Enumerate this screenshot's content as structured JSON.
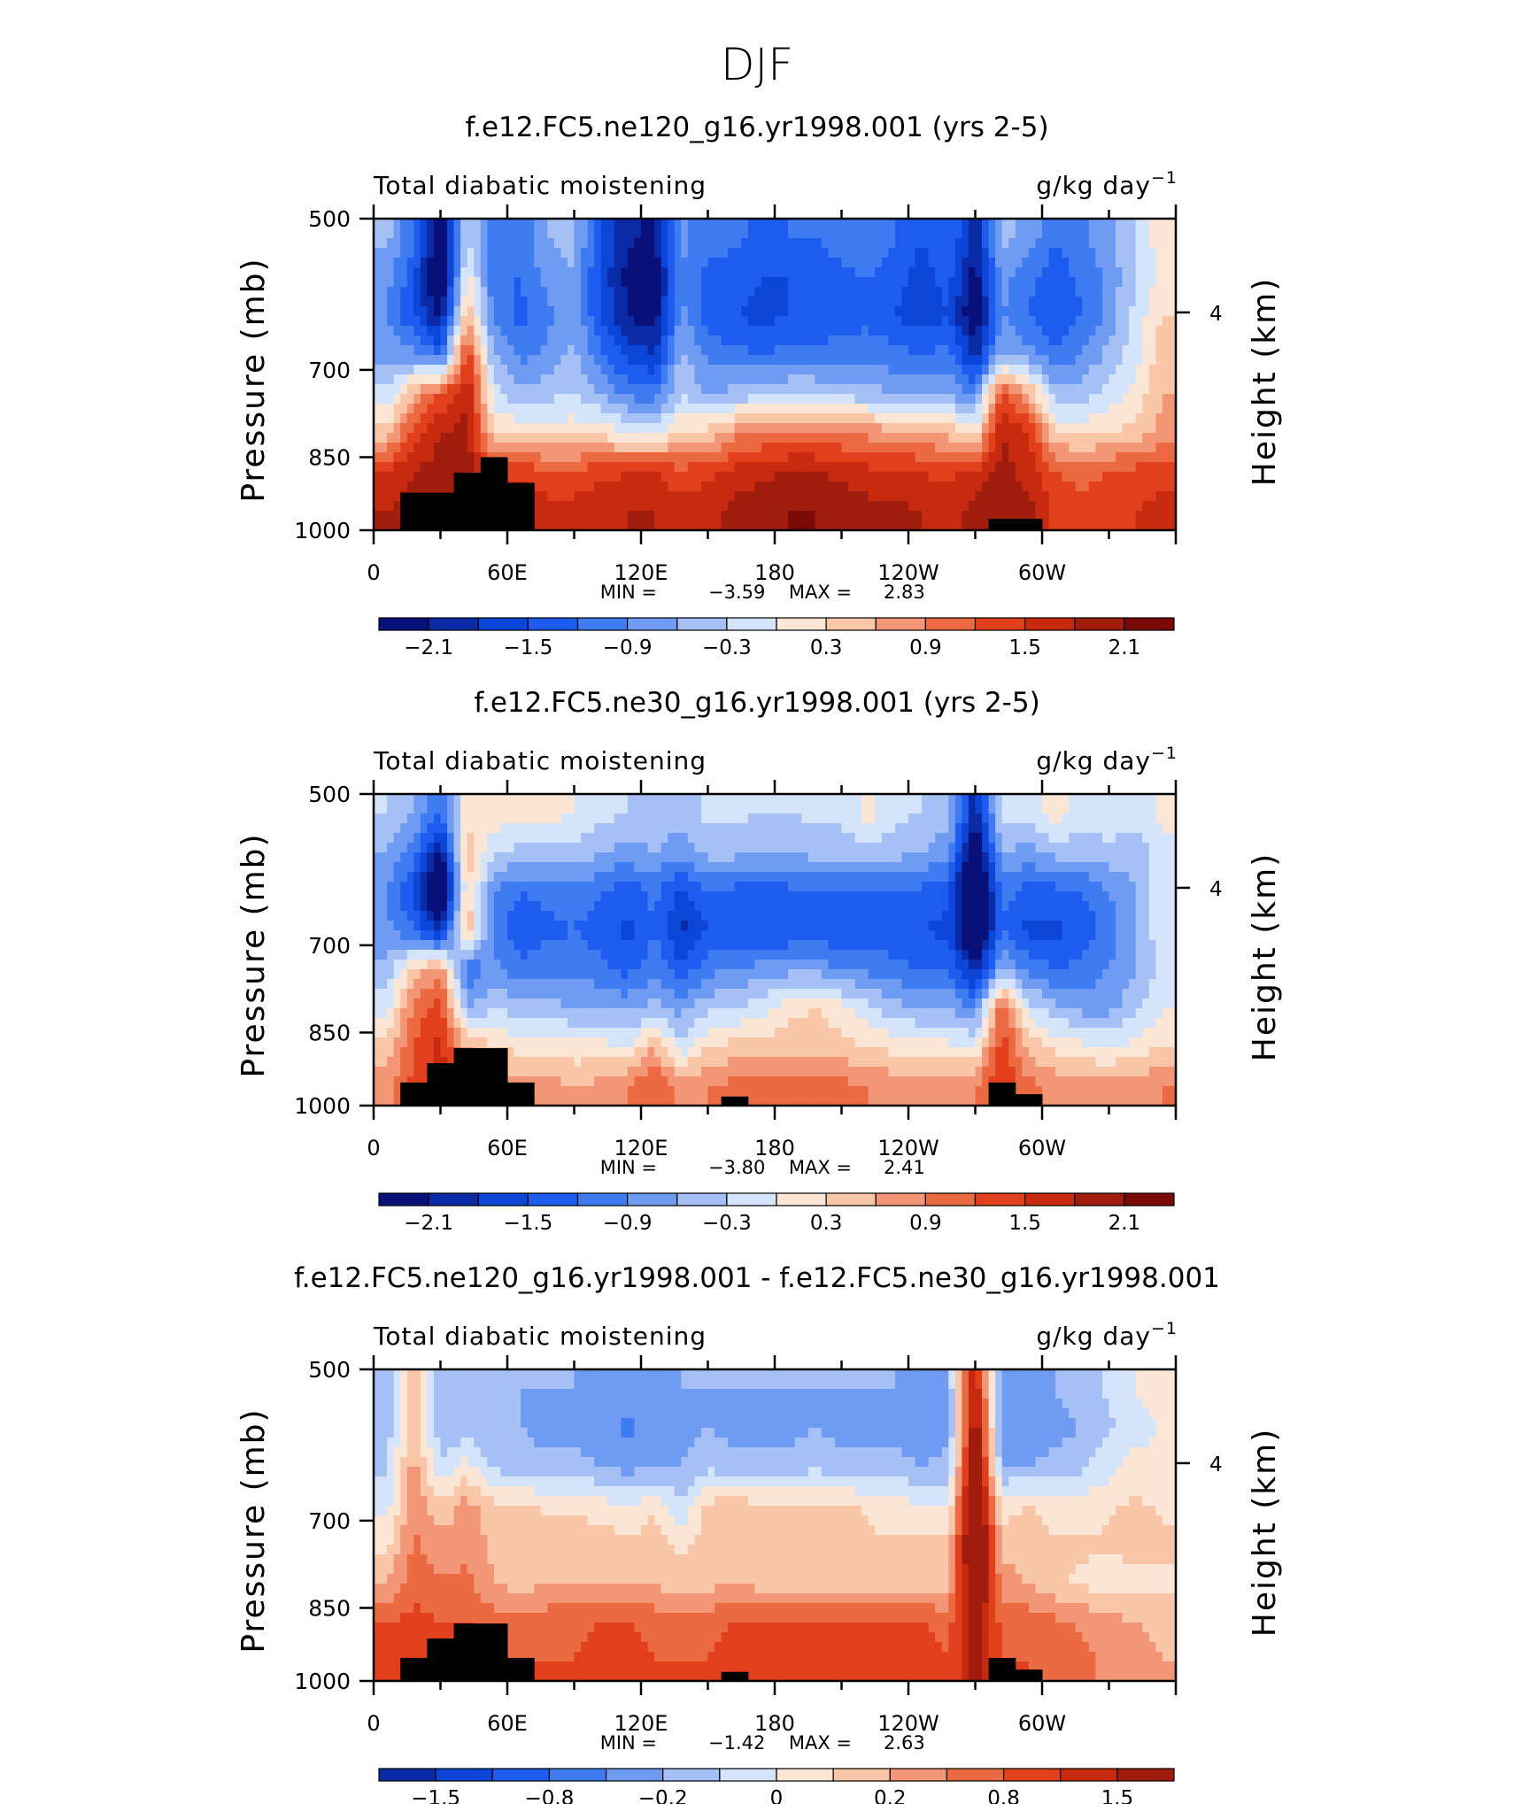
{
  "page_title": "DJF",
  "units_prefix": "g/kg day",
  "units_exp": "−1",
  "colors": {
    "std": [
      "#08107a",
      "#0a2aa6",
      "#0b46d8",
      "#1e5cf0",
      "#3f7cf2",
      "#6f9cf2",
      "#a4c0f4",
      "#d4e4fa",
      "#fbe6d6",
      "#f9c6a8",
      "#f29676",
      "#ec6a42",
      "#e2401c",
      "#c82a10",
      "#a01c0c",
      "#7a0a06"
    ],
    "land": "#000000",
    "axis": "#000000"
  },
  "chart_data": [
    {
      "type": "heatmap",
      "title": "f.e12.FC5.ne120_g16.yr1998.001 (yrs 2-5)",
      "left_label": "Total diabatic moistening",
      "ylabel": "Pressure (mb)",
      "ylabel_right": "Height (km)",
      "yticks": [
        "500",
        "700",
        "850",
        "1000"
      ],
      "ytick_values": [
        500,
        700,
        850,
        1000
      ],
      "right_tick": "4",
      "xticks": [
        "0",
        "60E",
        "120E",
        "180",
        "120W",
        "60W"
      ],
      "xtick_values": [
        0,
        60,
        120,
        180,
        240,
        300
      ],
      "xlim": [
        0,
        360
      ],
      "ylim": [
        500,
        1000
      ],
      "min_label": "MIN =",
      "min_value": "−3.59",
      "max_label": "MAX =",
      "max_value": "2.83",
      "colorbar_labels": [
        "−2.1",
        "−1.5",
        "−0.9",
        "−0.3",
        "0.3",
        "0.9",
        "1.5",
        "2.1"
      ],
      "field": [
        [
          -0.5,
          -1.2,
          -2.4,
          -0.3,
          -1.0,
          -1.1,
          -0.6,
          -0.5,
          -1.5,
          -2.0,
          -2.2,
          -0.8,
          -1.1,
          -1.1,
          -1.3,
          -1.2,
          -1.2,
          -1.0,
          -0.9,
          -1.2,
          -1.5,
          -1.2,
          -2.0,
          -0.5,
          -0.7,
          -1.2,
          -1.0,
          -0.7,
          -0.3,
          0.2
        ],
        [
          -0.8,
          -1.4,
          -2.8,
          0.2,
          -1.2,
          -1.2,
          -0.8,
          -0.6,
          -1.6,
          -2.2,
          -2.4,
          -0.9,
          -1.3,
          -1.4,
          -1.5,
          -1.5,
          -1.4,
          -1.3,
          -1.2,
          -1.4,
          -1.6,
          -1.4,
          -2.3,
          -0.8,
          -1.1,
          -1.4,
          -1.1,
          -0.8,
          -0.3,
          0.1
        ],
        [
          -0.9,
          -1.5,
          -2.2,
          0.6,
          -1.0,
          -1.3,
          -1.0,
          -0.7,
          -1.5,
          -2.1,
          -2.3,
          -0.8,
          -1.4,
          -1.5,
          -1.6,
          -1.5,
          -1.5,
          -1.4,
          -1.3,
          -1.5,
          -1.7,
          -1.5,
          -2.5,
          -0.9,
          -1.2,
          -1.5,
          -1.2,
          -0.8,
          -0.2,
          0.3
        ],
        [
          -0.7,
          -0.8,
          -1.2,
          1.4,
          -0.6,
          -1.0,
          -0.8,
          -0.5,
          -1.1,
          -1.6,
          -1.8,
          -0.5,
          -1.0,
          -1.1,
          -1.2,
          -1.1,
          -1.1,
          -1.0,
          -1.0,
          -1.1,
          -1.2,
          -1.1,
          -1.9,
          -0.6,
          -0.8,
          -1.1,
          -0.9,
          -0.5,
          -0.1,
          0.5
        ],
        [
          -0.2,
          0.6,
          1.2,
          1.8,
          -0.2,
          -0.5,
          -0.4,
          -0.3,
          -0.6,
          -1.0,
          -1.1,
          -0.3,
          -0.6,
          -0.5,
          -0.4,
          -0.3,
          -0.3,
          -0.4,
          -0.5,
          -0.6,
          -0.7,
          -0.6,
          -1.0,
          1.4,
          0.6,
          -0.5,
          -0.4,
          -0.2,
          0.1,
          0.6
        ],
        [
          0.4,
          1.4,
          1.8,
          1.9,
          0.3,
          0.2,
          0.2,
          0.2,
          0.2,
          0.0,
          -0.1,
          0.3,
          0.4,
          0.8,
          0.9,
          1.0,
          1.0,
          0.9,
          0.8,
          0.7,
          0.6,
          0.5,
          0.2,
          1.8,
          1.5,
          0.3,
          0.2,
          0.3,
          0.4,
          0.7
        ],
        [
          1.5,
          1.8,
          1.9,
          2.0,
          1.4,
          1.4,
          1.3,
          1.3,
          1.4,
          1.5,
          1.5,
          1.3,
          1.4,
          1.6,
          1.7,
          1.8,
          1.8,
          1.7,
          1.6,
          1.6,
          1.5,
          1.4,
          1.6,
          1.9,
          1.7,
          1.2,
          1.1,
          1.2,
          1.3,
          1.4
        ],
        [
          1.8,
          2.0,
          2.0,
          2.1,
          1.7,
          1.7,
          1.6,
          1.6,
          1.7,
          1.8,
          1.8,
          1.6,
          1.7,
          1.9,
          2.0,
          2.1,
          2.1,
          2.0,
          1.9,
          1.9,
          1.8,
          1.7,
          1.9,
          2.1,
          1.9,
          1.4,
          1.3,
          1.4,
          1.5,
          1.6
        ]
      ],
      "land_profile": [
        0,
        920,
        920,
        880,
        850,
        900,
        1000,
        1000,
        1000,
        1000,
        1000,
        1000,
        1000,
        1000,
        1000,
        1000,
        1000,
        1000,
        1000,
        1000,
        1000,
        1000,
        1000,
        975,
        975,
        1000,
        1000,
        1000,
        1000,
        1000
      ]
    },
    {
      "type": "heatmap",
      "title": "f.e12.FC5.ne30_g16.yr1998.001 (yrs 2-5)",
      "left_label": "Total diabatic moistening",
      "ylabel": "Pressure (mb)",
      "ylabel_right": "Height (km)",
      "yticks": [
        "500",
        "700",
        "850",
        "1000"
      ],
      "ytick_values": [
        500,
        700,
        850,
        1000
      ],
      "right_tick": "4",
      "xticks": [
        "0",
        "60E",
        "120E",
        "180",
        "120W",
        "60W"
      ],
      "xtick_values": [
        0,
        60,
        120,
        180,
        240,
        300
      ],
      "xlim": [
        0,
        360
      ],
      "ylim": [
        500,
        1000
      ],
      "min_label": "MIN =",
      "min_value": "−3.80",
      "max_label": "MAX =",
      "max_value": "2.41",
      "colorbar_labels": [
        "−2.1",
        "−1.5",
        "−0.9",
        "−0.3",
        "0.3",
        "0.9",
        "1.5",
        "2.1"
      ],
      "field": [
        [
          -0.3,
          -0.6,
          -1.2,
          0.2,
          0.2,
          0.1,
          0.1,
          0.0,
          -0.2,
          -0.3,
          -0.4,
          -0.5,
          -0.2,
          -0.2,
          -0.3,
          -0.3,
          -0.2,
          -0.2,
          0.1,
          -0.2,
          -0.3,
          -0.5,
          -2.0,
          -0.2,
          -0.2,
          0.2,
          -0.2,
          -0.1,
          -0.2,
          0.1
        ],
        [
          -0.6,
          -1.0,
          -2.2,
          0.5,
          -0.3,
          -0.4,
          -0.4,
          -0.4,
          -0.6,
          -0.7,
          -0.6,
          -0.8,
          -0.5,
          -0.5,
          -0.6,
          -0.6,
          -0.5,
          -0.5,
          -0.4,
          -0.5,
          -0.6,
          -0.8,
          -2.6,
          -0.6,
          -0.7,
          -0.5,
          -0.5,
          -0.4,
          -0.5,
          -0.1
        ],
        [
          -0.9,
          -1.6,
          -3.0,
          0.4,
          -0.9,
          -1.2,
          -1.1,
          -1.0,
          -1.2,
          -1.4,
          -1.1,
          -1.6,
          -1.2,
          -1.3,
          -1.3,
          -1.3,
          -1.2,
          -1.3,
          -1.2,
          -1.2,
          -1.3,
          -1.4,
          -3.0,
          -1.1,
          -1.3,
          -1.3,
          -1.2,
          -0.9,
          -0.6,
          -0.1
        ],
        [
          -0.8,
          -1.2,
          -2.0,
          0.6,
          -1.1,
          -1.4,
          -1.3,
          -1.2,
          -1.4,
          -1.6,
          -1.2,
          -1.9,
          -1.5,
          -1.5,
          -1.5,
          -1.5,
          -1.4,
          -1.5,
          -1.4,
          -1.4,
          -1.5,
          -1.6,
          -2.8,
          -1.2,
          -1.6,
          -1.6,
          -1.4,
          -1.1,
          -0.6,
          -0.1
        ],
        [
          -0.5,
          0.4,
          0.8,
          -1.2,
          -0.8,
          -1.1,
          -1.0,
          -1.0,
          -1.1,
          -1.3,
          -1.0,
          -1.4,
          -1.0,
          -0.9,
          -0.8,
          -0.7,
          -0.7,
          -0.9,
          -1.0,
          -1.1,
          -1.2,
          -1.2,
          -2.0,
          -0.6,
          -1.0,
          -1.2,
          -1.1,
          -0.9,
          -0.6,
          -0.2
        ],
        [
          -0.1,
          1.0,
          1.4,
          -0.6,
          -0.3,
          -0.5,
          -0.5,
          -0.6,
          -0.6,
          -0.7,
          -0.5,
          -0.7,
          -0.4,
          -0.3,
          -0.1,
          0.2,
          0.3,
          0.1,
          -0.2,
          -0.5,
          -0.6,
          -0.6,
          -0.9,
          1.2,
          -0.2,
          -0.5,
          -0.7,
          -0.7,
          -0.4,
          0.0
        ],
        [
          0.4,
          1.2,
          1.6,
          0.6,
          0.3,
          0.2,
          0.2,
          0.1,
          0.1,
          0.0,
          0.6,
          -0.2,
          0.3,
          0.4,
          0.4,
          0.5,
          0.5,
          0.4,
          0.3,
          0.2,
          0.1,
          0.1,
          0.0,
          1.4,
          0.5,
          0.2,
          0.1,
          0.0,
          0.1,
          0.3
        ],
        [
          0.8,
          1.3,
          1.7,
          1.2,
          0.8,
          0.7,
          0.7,
          0.6,
          0.7,
          0.9,
          1.2,
          0.8,
          0.9,
          1.0,
          1.0,
          1.1,
          1.1,
          1.0,
          0.9,
          0.8,
          0.7,
          0.7,
          0.9,
          1.5,
          1.0,
          0.8,
          0.7,
          0.7,
          0.8,
          0.9
        ]
      ],
      "land_profile": [
        0,
        950,
        910,
        880,
        880,
        950,
        1000,
        1000,
        1000,
        1000,
        1000,
        1000,
        1000,
        980,
        1000,
        1000,
        1000,
        1000,
        1000,
        1000,
        1000,
        1000,
        1000,
        950,
        975,
        1000,
        1000,
        1000,
        1000,
        1000
      ]
    },
    {
      "type": "heatmap",
      "title": "f.e12.FC5.ne120_g16.yr1998.001 - f.e12.FC5.ne30_g16.yr1998.001",
      "left_label": "Total diabatic moistening",
      "ylabel": "Pressure (mb)",
      "ylabel_right": "Height (km)",
      "yticks": [
        "500",
        "700",
        "850",
        "1000"
      ],
      "ytick_values": [
        500,
        700,
        850,
        1000
      ],
      "right_tick": "4",
      "xticks": [
        "0",
        "60E",
        "120E",
        "180",
        "120W",
        "60W"
      ],
      "xtick_values": [
        0,
        60,
        120,
        180,
        240,
        300
      ],
      "xlim": [
        0,
        360
      ],
      "ylim": [
        500,
        1000
      ],
      "min_label": "MIN =",
      "min_value": "−1.42",
      "max_label": "MAX =",
      "max_value": "2.63",
      "colorbar_labels": [
        "−1.5",
        "−0.8",
        "−0.2",
        "0",
        "0.2",
        "0.8",
        "1.5"
      ],
      "field": [
        [
          -0.4,
          0.4,
          -0.5,
          -0.4,
          -0.5,
          -0.5,
          -0.5,
          -0.5,
          -0.6,
          -0.7,
          -0.6,
          -0.5,
          -0.5,
          -0.5,
          -0.5,
          -0.5,
          -0.5,
          -0.5,
          -0.5,
          -0.5,
          -0.6,
          -0.5,
          1.5,
          -0.6,
          -0.6,
          -0.5,
          -0.4,
          -0.2,
          0.0,
          0.1
        ],
        [
          -0.4,
          0.5,
          -0.4,
          -0.4,
          -0.5,
          -0.5,
          -0.6,
          -0.6,
          -0.7,
          -0.8,
          -0.7,
          -0.6,
          -0.5,
          -0.6,
          -0.6,
          -0.6,
          -0.5,
          -0.6,
          -0.6,
          -0.6,
          -0.7,
          -0.6,
          1.8,
          -0.7,
          -0.7,
          -0.6,
          -0.5,
          -0.3,
          -0.1,
          0.0
        ],
        [
          -0.3,
          0.6,
          -0.2,
          0.1,
          -0.3,
          -0.4,
          -0.4,
          -0.4,
          -0.5,
          -0.6,
          -0.5,
          -0.5,
          -0.3,
          -0.4,
          -0.4,
          -0.4,
          -0.3,
          -0.4,
          -0.4,
          -0.4,
          -0.5,
          -0.4,
          2.0,
          -0.5,
          -0.5,
          -0.4,
          -0.3,
          -0.1,
          0.1,
          0.1
        ],
        [
          -0.1,
          0.7,
          0.3,
          0.6,
          0.3,
          0.3,
          0.2,
          0.2,
          0.1,
          0.0,
          0.2,
          -0.2,
          0.3,
          0.4,
          0.3,
          0.3,
          0.3,
          0.3,
          0.2,
          0.1,
          0.0,
          0.0,
          2.2,
          0.1,
          0.3,
          0.1,
          0.1,
          0.2,
          0.3,
          0.2
        ],
        [
          0.2,
          0.8,
          0.6,
          0.7,
          0.4,
          0.4,
          0.4,
          0.4,
          0.4,
          0.3,
          0.4,
          0.2,
          0.4,
          0.5,
          0.4,
          0.4,
          0.4,
          0.4,
          0.3,
          0.3,
          0.3,
          0.3,
          2.3,
          0.4,
          0.4,
          0.3,
          0.3,
          0.3,
          0.4,
          0.3
        ],
        [
          0.5,
          0.9,
          0.8,
          0.8,
          0.5,
          0.4,
          0.5,
          0.5,
          0.5,
          0.5,
          0.5,
          0.3,
          0.4,
          0.5,
          0.4,
          0.4,
          0.4,
          0.4,
          0.4,
          0.4,
          0.4,
          0.4,
          2.1,
          0.6,
          0.5,
          0.3,
          0.2,
          0.1,
          0.1,
          0.2
        ],
        [
          1.0,
          1.1,
          1.0,
          1.0,
          0.9,
          0.9,
          0.9,
          0.9,
          1.0,
          1.0,
          0.9,
          0.9,
          0.9,
          1.0,
          1.0,
          1.0,
          1.0,
          1.0,
          1.0,
          1.0,
          1.0,
          0.9,
          1.8,
          0.9,
          0.9,
          0.8,
          0.7,
          0.6,
          0.5,
          0.4
        ],
        [
          1.0,
          1.2,
          1.1,
          1.1,
          1.0,
          1.0,
          1.0,
          1.0,
          1.1,
          1.1,
          1.0,
          1.0,
          1.0,
          1.1,
          1.1,
          1.1,
          1.1,
          1.1,
          1.1,
          1.1,
          1.1,
          1.0,
          1.6,
          1.0,
          1.0,
          0.9,
          0.8,
          0.7,
          0.6,
          0.5
        ]
      ],
      "land_profile": [
        0,
        950,
        910,
        880,
        880,
        950,
        1000,
        1000,
        1000,
        1000,
        1000,
        1000,
        1000,
        980,
        1000,
        1000,
        1000,
        1000,
        1000,
        1000,
        1000,
        1000,
        1000,
        950,
        975,
        1000,
        1000,
        1000,
        1000,
        1000
      ]
    }
  ]
}
